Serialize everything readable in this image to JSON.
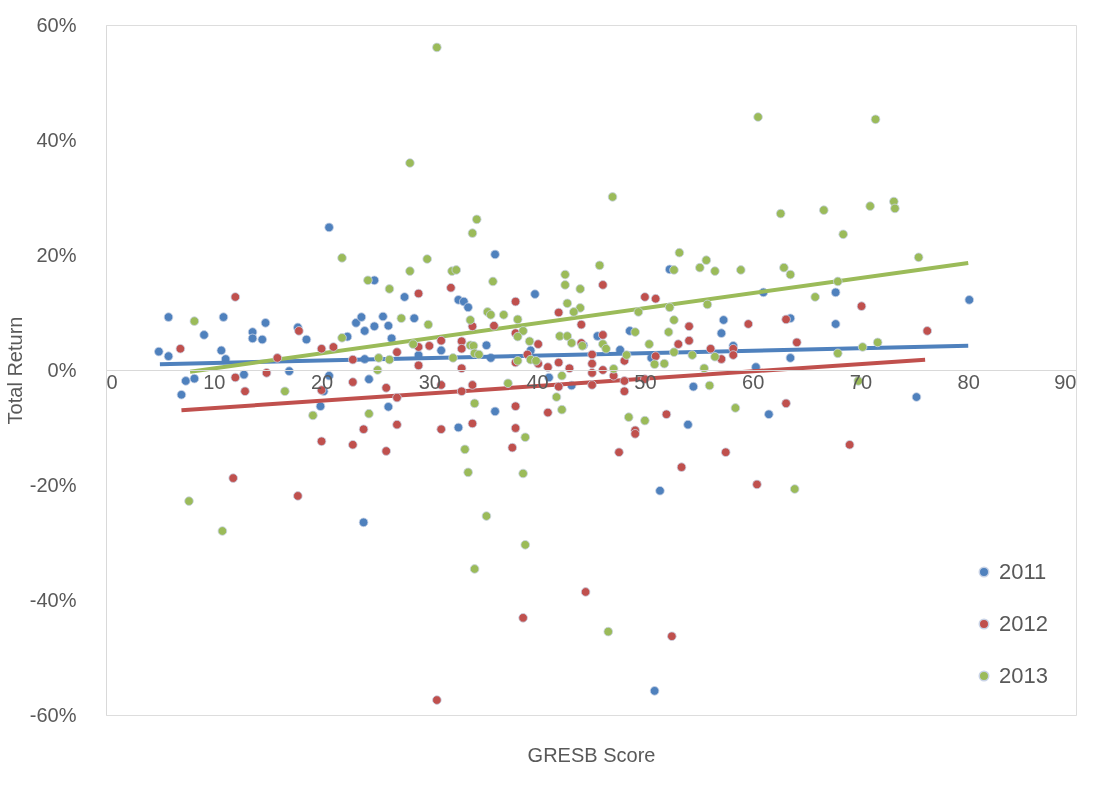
{
  "chart_data": {
    "type": "scatter",
    "xlabel": "GRESB Score",
    "ylabel": "Total Return",
    "xlim": [
      0,
      90
    ],
    "xticks": [
      0,
      10,
      20,
      30,
      40,
      50,
      60,
      70,
      80,
      90
    ],
    "ylim": [
      -60,
      60
    ],
    "yticks": [
      {
        "value": -60,
        "label": "-60%"
      },
      {
        "value": -40,
        "label": "-40%"
      },
      {
        "value": -20,
        "label": "-20%"
      },
      {
        "value": 0,
        "label": "0%"
      },
      {
        "value": 20,
        "label": "20%"
      },
      {
        "value": 40,
        "label": "40%"
      },
      {
        "value": 60,
        "label": "60%"
      }
    ],
    "grid": false,
    "legend": "bottom right",
    "marker": "circle",
    "series": [
      {
        "name": "2011",
        "color": "#4f81bd",
        "x": [
          4.9,
          5.8,
          5.8,
          7.0,
          7.4,
          8.2,
          9.1,
          10.7,
          10.9,
          12.8,
          11.1,
          13.6,
          13.6,
          14.5,
          14.8,
          17.0,
          17.8,
          18.6,
          20.7,
          20.7,
          20.2,
          19.9,
          22.4,
          23.2,
          23.7,
          24.0,
          24.9,
          24.9,
          24.4,
          25.7,
          26.2,
          26.5,
          26.2,
          27.7,
          28.6,
          24.0,
          29.0,
          23.9,
          32.7,
          33.2,
          33.6,
          36.1,
          39.8,
          35.3,
          31.1,
          35.7,
          39.4,
          32.7,
          36.1,
          41.1,
          44.3,
          45.6,
          43.2,
          48.6,
          47.7,
          50.6,
          52.3,
          54.5,
          54.0,
          57.3,
          57.1,
          58.2,
          61.0,
          67.7,
          67.7,
          63.5,
          63.5,
          60.3,
          61.5,
          75.2,
          80.1,
          50.9,
          51.4
        ],
        "values": [
          3.2,
          9.2,
          2.4,
          -4.3,
          -1.9,
          -1.5,
          6.1,
          3.4,
          9.2,
          -0.8,
          1.9,
          6.6,
          5.5,
          5.3,
          8.2,
          -0.2,
          7.4,
          5.3,
          24.8,
          -1.0,
          -3.7,
          -6.3,
          5.8,
          8.2,
          9.2,
          6.8,
          15.6,
          7.6,
          -1.6,
          9.3,
          7.7,
          5.5,
          -6.4,
          12.7,
          9.0,
          1.9,
          2.6,
          -26.5,
          12.2,
          11.9,
          10.9,
          20.1,
          13.2,
          4.3,
          3.4,
          2.1,
          3.4,
          -10.0,
          -7.2,
          -1.3,
          4.3,
          5.9,
          -2.7,
          6.8,
          3.5,
          2.1,
          17.5,
          -2.9,
          -9.5,
          8.7,
          6.4,
          4.2,
          13.5,
          13.5,
          8.0,
          9.0,
          2.1,
          0.5,
          -7.7,
          -4.7,
          12.2,
          -55.8,
          -21.0
        ]
      },
      {
        "name": "2012",
        "color": "#c0504d",
        "x": [
          6.9,
          12.0,
          12.0,
          12.9,
          14.9,
          15.9,
          17.9,
          20.0,
          21.1,
          20.0,
          20.0,
          22.9,
          22.9,
          22.9,
          23.9,
          26.0,
          26.0,
          27.0,
          27.0,
          27.0,
          29.0,
          29.0,
          29.0,
          30.0,
          11.8,
          17.8,
          30.7,
          38.7,
          44.5,
          52.5,
          53.4,
          60.4,
          47.6,
          57.5,
          37.7,
          32.0,
          31.1,
          33.0,
          33.0,
          34.0,
          33.0,
          31.1,
          33.0,
          34.0,
          31.1,
          34.0,
          36.0,
          38.0,
          38.0,
          38.0,
          38.0,
          38.0,
          40.1,
          39.1,
          40.1,
          41.0,
          42.0,
          42.0,
          42.0,
          41.0,
          43.0,
          44.1,
          44.1,
          45.1,
          45.1,
          45.1,
          45.1,
          46.1,
          46.1,
          46.1,
          47.1,
          48.1,
          48.1,
          48.1,
          49.1,
          49.1,
          50.0,
          51.0,
          51.0,
          50.0,
          52.0,
          53.1,
          54.1,
          54.1,
          56.1,
          57.1,
          58.2,
          58.2,
          59.6,
          63.1,
          64.1,
          70.1,
          76.2,
          63.1,
          69.0
        ],
        "values": [
          3.7,
          12.7,
          -1.3,
          -3.7,
          -0.5,
          2.1,
          6.8,
          3.7,
          4.0,
          -3.5,
          -12.4,
          1.8,
          -2.1,
          -13.0,
          -10.3,
          -3.1,
          -14.1,
          3.1,
          -4.8,
          -9.5,
          13.3,
          4.0,
          0.8,
          4.2,
          -18.8,
          -21.9,
          -57.4,
          -43.1,
          -38.6,
          -46.3,
          -16.9,
          -19.9,
          -14.3,
          -14.3,
          -13.5,
          14.3,
          5.1,
          5.0,
          3.7,
          7.6,
          0.3,
          -2.6,
          -3.7,
          -2.6,
          -10.3,
          -9.3,
          7.7,
          11.9,
          6.4,
          1.3,
          -6.3,
          -10.1,
          4.5,
          2.7,
          1.1,
          0.5,
          10.0,
          1.3,
          -2.9,
          -7.4,
          0.3,
          7.9,
          4.7,
          2.7,
          1.1,
          -0.5,
          -2.6,
          14.8,
          6.1,
          0.0,
          -1.0,
          1.6,
          -1.9,
          -3.7,
          -10.5,
          -11.1,
          12.7,
          12.4,
          2.4,
          -1.6,
          -7.7,
          4.5,
          7.6,
          5.1,
          3.7,
          1.9,
          3.7,
          2.6,
          8.0,
          8.8,
          4.8,
          11.1,
          6.8,
          -5.8,
          -13.0
        ]
      },
      {
        "name": "2013",
        "color": "#9bbb59",
        "x": [
          8.2,
          16.6,
          19.2,
          21.9,
          21.9,
          24.3,
          24.4,
          25.2,
          25.3,
          26.3,
          26.3,
          27.4,
          28.2,
          28.5,
          29.8,
          29.9,
          7.7,
          10.8,
          33.3,
          33.6,
          38.7,
          35.3,
          38.9,
          34.2,
          46.6,
          63.9,
          30.7,
          28.2,
          60.5,
          71.4,
          32.1,
          32.5,
          34.0,
          34.4,
          35.9,
          33.8,
          35.4,
          35.7,
          36.9,
          38.2,
          38.7,
          38.2,
          39.3,
          33.8,
          34.1,
          34.2,
          34.6,
          32.2,
          38.2,
          39.4,
          39.9,
          37.3,
          34.2,
          38.9,
          47.0,
          45.8,
          42.6,
          42.6,
          44.0,
          42.8,
          44.0,
          43.4,
          42.1,
          42.8,
          43.2,
          44.2,
          46.1,
          46.4,
          47.1,
          42.3,
          41.8,
          42.3,
          48.3,
          49.1,
          49.4,
          50.4,
          50.9,
          51.8,
          48.5,
          50.0,
          52.7,
          53.2,
          52.3,
          52.7,
          52.2,
          52.7,
          55.1,
          55.7,
          56.5,
          55.8,
          54.4,
          56.5,
          55.5,
          56.0,
          58.4,
          58.9,
          62.6,
          66.6,
          70.9,
          73.1,
          73.2,
          68.4,
          62.9,
          63.5,
          75.4,
          67.9,
          65.8,
          67.9,
          70.2,
          71.6,
          69.8
        ],
        "values": [
          8.5,
          -3.7,
          -7.9,
          19.5,
          5.6,
          15.6,
          -7.6,
          0.0,
          2.1,
          14.1,
          1.8,
          9.0,
          17.2,
          4.5,
          19.3,
          7.9,
          -22.8,
          -28.0,
          -13.8,
          -17.8,
          -18.0,
          -25.4,
          -30.4,
          -34.6,
          -45.5,
          -20.7,
          56.1,
          36.0,
          44.0,
          43.6,
          17.2,
          17.4,
          23.8,
          26.2,
          15.4,
          8.7,
          10.1,
          9.6,
          9.6,
          8.8,
          6.8,
          5.8,
          5.0,
          4.3,
          4.2,
          2.9,
          2.7,
          2.1,
          1.6,
          1.8,
          1.6,
          -2.3,
          -5.8,
          -11.7,
          30.1,
          18.2,
          16.6,
          14.8,
          14.1,
          11.6,
          10.8,
          10.1,
          5.9,
          5.9,
          4.7,
          4.2,
          4.5,
          3.7,
          0.2,
          -1.0,
          -4.7,
          -6.9,
          2.6,
          6.6,
          10.1,
          4.5,
          1.0,
          1.1,
          -8.2,
          -8.8,
          17.4,
          20.4,
          10.9,
          8.7,
          6.6,
          3.1,
          17.8,
          19.1,
          17.2,
          11.4,
          2.6,
          2.3,
          0.3,
          -2.7,
          -6.6,
          17.4,
          27.2,
          27.8,
          28.5,
          29.3,
          28.1,
          23.6,
          17.8,
          16.6,
          19.6,
          15.4,
          12.7,
          2.9,
          4.0,
          4.8,
          -1.9
        ]
      },
      {
        "color": "#4f81bd",
        "type": "line",
        "marker": "none",
        "x": [
          5,
          80
        ],
        "values": [
          1.0,
          4.2
        ]
      },
      {
        "color": "#c0504d",
        "type": "line",
        "marker": "none",
        "x": [
          7,
          76
        ],
        "values": [
          -7.0,
          1.8
        ]
      },
      {
        "color": "#9bbb59",
        "type": "line",
        "marker": "none",
        "x": [
          7.8,
          80
        ],
        "values": [
          -0.3,
          18.6
        ]
      }
    ]
  }
}
